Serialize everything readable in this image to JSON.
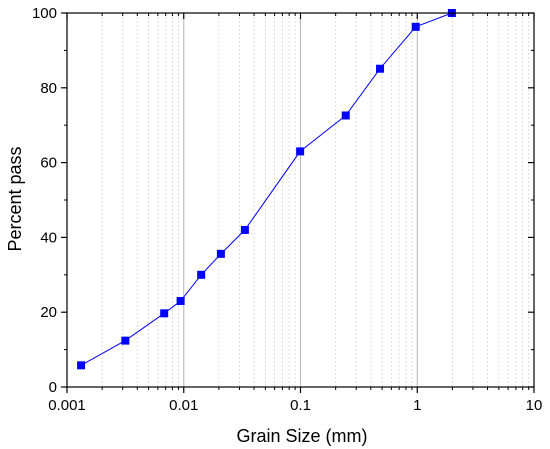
{
  "chart_data": {
    "type": "scatter",
    "xlabel": "Grain Size (mm)",
    "ylabel": "Percent pass",
    "xscale": "log",
    "xlim": [
      0.001,
      10
    ],
    "ylim": [
      0,
      100
    ],
    "x_ticks": [
      0.001,
      0.01,
      0.1,
      1,
      10
    ],
    "x_tick_labels": [
      "0.001",
      "0.01",
      "0.1",
      "1",
      "10"
    ],
    "y_ticks": [
      0,
      20,
      40,
      60,
      80,
      100
    ],
    "y_tick_labels": [
      "0",
      "20",
      "40",
      "60",
      "80",
      "100"
    ],
    "grid": "vertical major and minor lines on log x axis",
    "series": [
      {
        "marker": "square",
        "line": true,
        "color": "#0000ff",
        "x": [
          0.00132,
          0.00316,
          0.0068,
          0.0094,
          0.0141,
          0.0208,
          0.0334,
          0.0993,
          0.244,
          0.48,
          0.97,
          1.98
        ],
        "y": [
          5.8,
          12.4,
          19.7,
          23.0,
          30.0,
          35.6,
          42.0,
          63.0,
          72.6,
          85.1,
          96.3,
          100.0
        ]
      }
    ]
  }
}
